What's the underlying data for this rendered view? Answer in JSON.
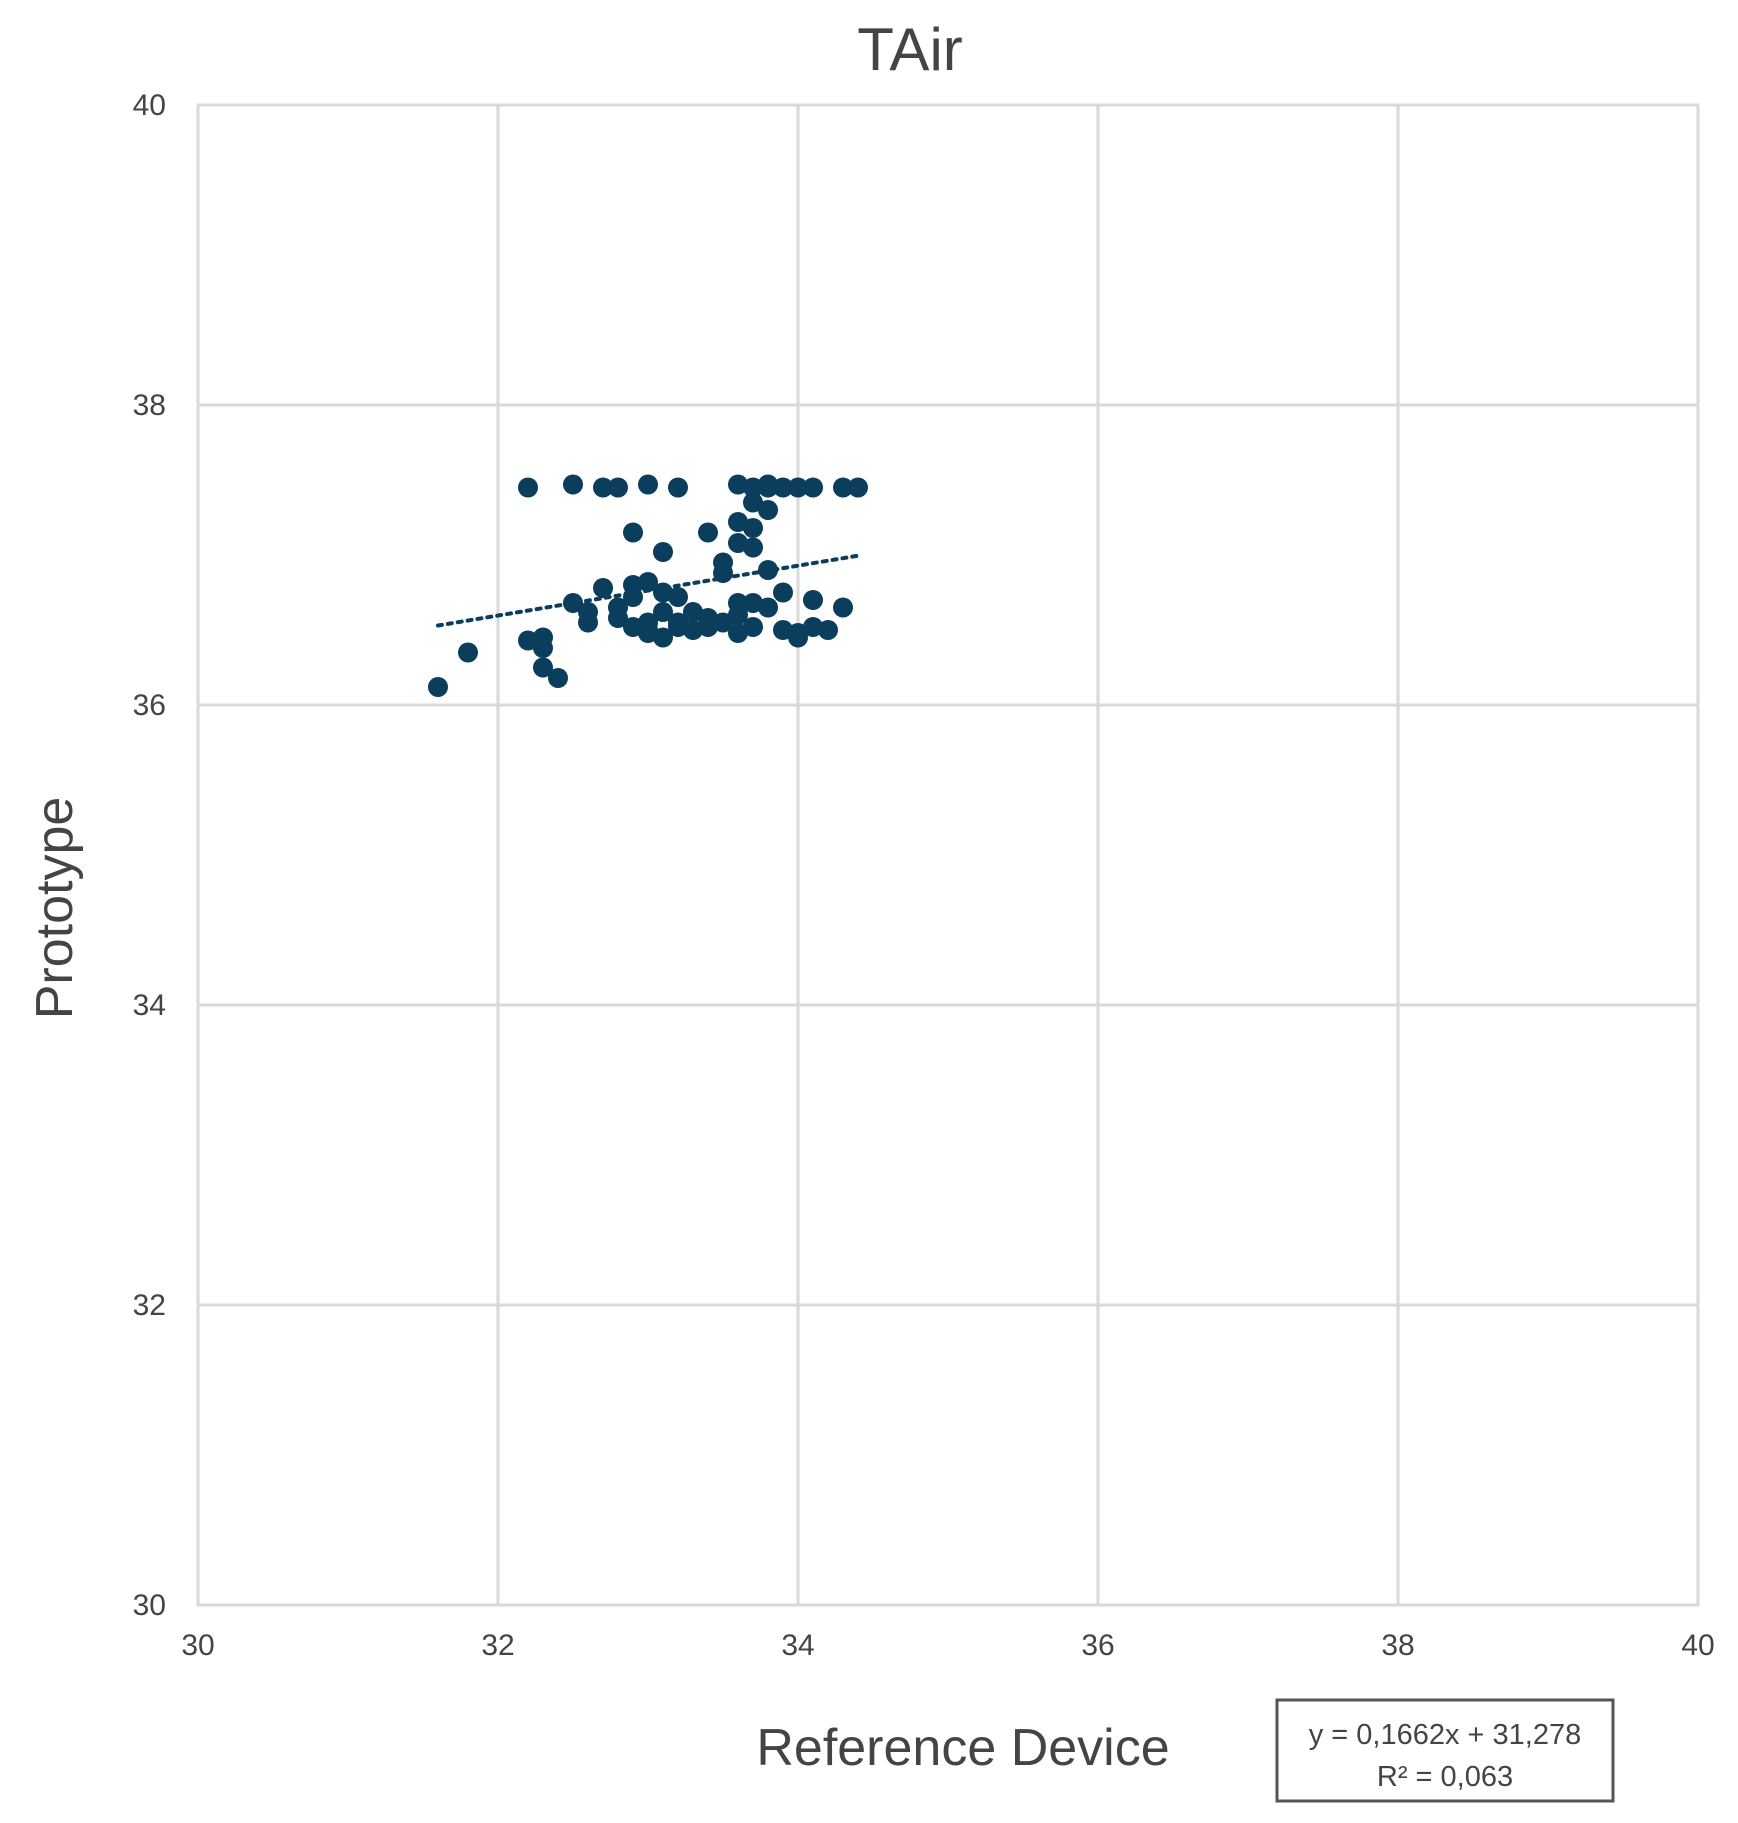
{
  "chart_data": {
    "type": "scatter",
    "title": "TAir",
    "xlabel": "Reference Device",
    "ylabel": "Prototype",
    "xlim": [
      30,
      40
    ],
    "ylim": [
      30,
      40
    ],
    "x_ticks": [
      30,
      32,
      34,
      36,
      38,
      40
    ],
    "y_ticks": [
      30,
      32,
      34,
      36,
      38,
      40
    ],
    "grid": true,
    "marker_color": "#0b3d5c",
    "trendline": {
      "style": "dotted",
      "slope": 0.1662,
      "intercept": 31.278,
      "x_range": [
        31.6,
        34.4
      ],
      "equation_label": "y = 0,1662x + 31,278",
      "r2_label": "R² = 0,063"
    },
    "series": [
      {
        "x": [
          31.6,
          31.8,
          32.2,
          32.3,
          32.3,
          32.3,
          32.4,
          32.2,
          32.5,
          32.7,
          32.8,
          33.0,
          33.2,
          33.6,
          33.7,
          33.8,
          33.8,
          33.9,
          34.0,
          34.1,
          34.3,
          34.4,
          32.9,
          33.1,
          33.4,
          33.6,
          33.7,
          33.6,
          33.7,
          33.5,
          33.5,
          33.8,
          33.7,
          33.8,
          32.5,
          32.6,
          32.7,
          32.8,
          32.9,
          32.9,
          33.0,
          33.0,
          33.1,
          33.1,
          33.2,
          33.2,
          33.3,
          33.4,
          33.5,
          33.6,
          33.6,
          33.7,
          33.8,
          33.9,
          34.1,
          34.3,
          32.6,
          32.8,
          32.9,
          33.0,
          33.0,
          33.1,
          33.2,
          33.3,
          33.4,
          33.6,
          33.7,
          33.9,
          34.0,
          34.0,
          34.1,
          34.2
        ],
        "y": [
          36.12,
          36.35,
          36.43,
          36.45,
          36.38,
          36.25,
          36.18,
          37.45,
          37.47,
          37.45,
          37.45,
          37.47,
          37.45,
          37.47,
          37.45,
          37.45,
          37.47,
          37.45,
          37.45,
          37.45,
          37.45,
          37.45,
          37.15,
          37.02,
          37.15,
          37.22,
          37.18,
          37.08,
          37.35,
          36.95,
          36.88,
          37.3,
          37.05,
          36.9,
          36.68,
          36.62,
          36.78,
          36.65,
          36.72,
          36.8,
          36.82,
          36.55,
          36.62,
          36.75,
          36.72,
          36.55,
          36.62,
          36.58,
          36.55,
          36.6,
          36.68,
          36.68,
          36.65,
          36.75,
          36.7,
          36.65,
          36.55,
          36.58,
          36.52,
          36.5,
          36.48,
          36.45,
          36.52,
          36.5,
          36.52,
          36.48,
          36.52,
          36.5,
          36.45,
          36.48,
          36.52,
          36.5
        ]
      }
    ]
  }
}
